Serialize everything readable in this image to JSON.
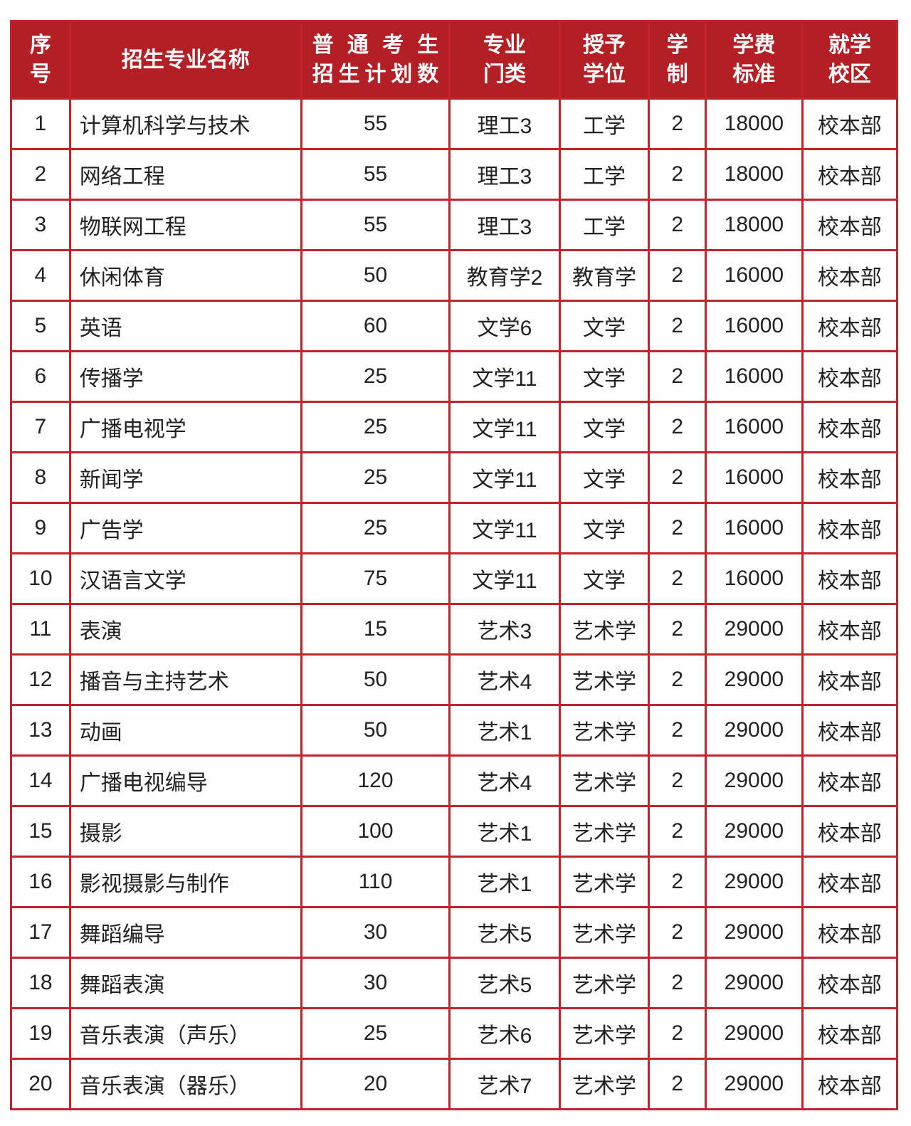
{
  "colors": {
    "header_bg": "#b41e25",
    "border": "#c32429",
    "header_text": "#ffffff",
    "body_text": "#222222"
  },
  "table": {
    "header": [
      {
        "id": "no",
        "lines": [
          "序",
          "号"
        ]
      },
      {
        "id": "major",
        "lines": [
          "招生专业名称"
        ]
      },
      {
        "id": "plan",
        "lines": [
          "普通考生",
          "招生计划数"
        ],
        "distribute": true
      },
      {
        "id": "category",
        "lines": [
          "专业",
          "门类"
        ]
      },
      {
        "id": "degree",
        "lines": [
          "授予",
          "学位"
        ]
      },
      {
        "id": "years",
        "lines": [
          "学",
          "制"
        ]
      },
      {
        "id": "tuition",
        "lines": [
          "学费",
          "标准"
        ]
      },
      {
        "id": "campus",
        "lines": [
          "就学",
          "校区"
        ]
      }
    ],
    "rows": [
      {
        "no": "1",
        "major": "计算机科学与技术",
        "plan": "55",
        "category": "理工3",
        "degree": "工学",
        "years": "2",
        "tuition": "18000",
        "campus": "校本部"
      },
      {
        "no": "2",
        "major": "网络工程",
        "plan": "55",
        "category": "理工3",
        "degree": "工学",
        "years": "2",
        "tuition": "18000",
        "campus": "校本部"
      },
      {
        "no": "3",
        "major": "物联网工程",
        "plan": "55",
        "category": "理工3",
        "degree": "工学",
        "years": "2",
        "tuition": "18000",
        "campus": "校本部"
      },
      {
        "no": "4",
        "major": "休闲体育",
        "plan": "50",
        "category": "教育学2",
        "degree": "教育学",
        "years": "2",
        "tuition": "16000",
        "campus": "校本部"
      },
      {
        "no": "5",
        "major": "英语",
        "plan": "60",
        "category": "文学6",
        "degree": "文学",
        "years": "2",
        "tuition": "16000",
        "campus": "校本部"
      },
      {
        "no": "6",
        "major": "传播学",
        "plan": "25",
        "category": "文学11",
        "degree": "文学",
        "years": "2",
        "tuition": "16000",
        "campus": "校本部"
      },
      {
        "no": "7",
        "major": "广播电视学",
        "plan": "25",
        "category": "文学11",
        "degree": "文学",
        "years": "2",
        "tuition": "16000",
        "campus": "校本部"
      },
      {
        "no": "8",
        "major": "新闻学",
        "plan": "25",
        "category": "文学11",
        "degree": "文学",
        "years": "2",
        "tuition": "16000",
        "campus": "校本部"
      },
      {
        "no": "9",
        "major": "广告学",
        "plan": "25",
        "category": "文学11",
        "degree": "文学",
        "years": "2",
        "tuition": "16000",
        "campus": "校本部"
      },
      {
        "no": "10",
        "major": "汉语言文学",
        "plan": "75",
        "category": "文学11",
        "degree": "文学",
        "years": "2",
        "tuition": "16000",
        "campus": "校本部"
      },
      {
        "no": "11",
        "major": "表演",
        "plan": "15",
        "category": "艺术3",
        "degree": "艺术学",
        "years": "2",
        "tuition": "29000",
        "campus": "校本部"
      },
      {
        "no": "12",
        "major": "播音与主持艺术",
        "plan": "50",
        "category": "艺术4",
        "degree": "艺术学",
        "years": "2",
        "tuition": "29000",
        "campus": "校本部"
      },
      {
        "no": "13",
        "major": "动画",
        "plan": "50",
        "category": "艺术1",
        "degree": "艺术学",
        "years": "2",
        "tuition": "29000",
        "campus": "校本部"
      },
      {
        "no": "14",
        "major": "广播电视编导",
        "plan": "120",
        "category": "艺术4",
        "degree": "艺术学",
        "years": "2",
        "tuition": "29000",
        "campus": "校本部"
      },
      {
        "no": "15",
        "major": "摄影",
        "plan": "100",
        "category": "艺术1",
        "degree": "艺术学",
        "years": "2",
        "tuition": "29000",
        "campus": "校本部"
      },
      {
        "no": "16",
        "major": "影视摄影与制作",
        "plan": "110",
        "category": "艺术1",
        "degree": "艺术学",
        "years": "2",
        "tuition": "29000",
        "campus": "校本部"
      },
      {
        "no": "17",
        "major": "舞蹈编导",
        "plan": "30",
        "category": "艺术5",
        "degree": "艺术学",
        "years": "2",
        "tuition": "29000",
        "campus": "校本部"
      },
      {
        "no": "18",
        "major": "舞蹈表演",
        "plan": "30",
        "category": "艺术5",
        "degree": "艺术学",
        "years": "2",
        "tuition": "29000",
        "campus": "校本部"
      },
      {
        "no": "19",
        "major": "音乐表演（声乐）",
        "plan": "25",
        "category": "艺术6",
        "degree": "艺术学",
        "years": "2",
        "tuition": "29000",
        "campus": "校本部"
      },
      {
        "no": "20",
        "major": "音乐表演（器乐）",
        "plan": "20",
        "category": "艺术7",
        "degree": "艺术学",
        "years": "2",
        "tuition": "29000",
        "campus": "校本部"
      }
    ]
  }
}
